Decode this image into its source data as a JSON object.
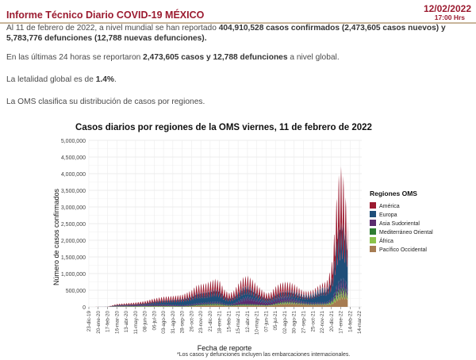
{
  "header": {
    "title": "Informe Técnico Diario COVID-19 MÉXICO",
    "date": "12/02/2022",
    "time": "17:00 Hrs"
  },
  "paragraphs": {
    "p1_a": "Al 11 de febrero de 2022, a nivel mundial se han reportado ",
    "p1_b": "404,910,528 casos confirmados (2,473,605 casos nuevos) y 5,783,776 defunciones (12,788 nuevas defunciones).",
    "p2_a": "En las últimas 24 horas se reportaron ",
    "p2_b": "2,473,605 casos y 12,788 defunciones",
    "p2_c": " a nivel global.",
    "p3_a": "La letalidad global es de ",
    "p3_b": "1.4%",
    "p3_c": ".",
    "p4": "La OMS clasifica su distribución de casos por regiones."
  },
  "chart_data": {
    "type": "area",
    "title": "Casos diarios por regiones de la OMS viernes, 11 de febrero de 2022",
    "xlabel": "Fecha de reporte",
    "ylabel": "Número de casos confirmados",
    "ylim": [
      0,
      5000000
    ],
    "y_ticks": [
      "0",
      "500,000",
      "1,000,000",
      "1,500,000",
      "2,000,000",
      "2,500,000",
      "3,000,000",
      "3,500,000",
      "4,000,000",
      "4,500,000",
      "5,000,000"
    ],
    "x_ticks": [
      "23-dic-19",
      "20-ene-20",
      "17-feb-20",
      "16-mar-20",
      "13-abr-20",
      "11-may-20",
      "08-jun-20",
      "06-jul-20",
      "03-ago-20",
      "31-ago-20",
      "28-sep-20",
      "26-oct-20",
      "23-nov-20",
      "21-dic-20",
      "18-ene-21",
      "15-feb-21",
      "15-mar-21",
      "12-abr-21",
      "10-may-21",
      "07-jun-21",
      "05-jul-21",
      "02-ago-21",
      "30-ago-21",
      "27-sep-21",
      "25-oct-21",
      "22-nov-21",
      "20-dic-21",
      "17-ene-22",
      "14-feb-22",
      "14-mar-22"
    ],
    "x_weeks": [
      0,
      4,
      8,
      12,
      16,
      20,
      24,
      28,
      32,
      36,
      40,
      44,
      48,
      52,
      56,
      60,
      64,
      68,
      72,
      76,
      80,
      84,
      88,
      92,
      96,
      100,
      104,
      108,
      112,
      116
    ],
    "grid": true,
    "legend_title": "Regiones OMS",
    "legend_position": "right",
    "series": [
      {
        "name": "América",
        "color": "#9b1b30"
      },
      {
        "name": "Europa",
        "color": "#1f4e79"
      },
      {
        "name": "Asia Sudoriental",
        "color": "#5b2c6f"
      },
      {
        "name": "Mediterráneo Oriental",
        "color": "#2e7d32"
      },
      {
        "name": "África",
        "color": "#8bc34a"
      },
      {
        "name": "Pacífico Occidental",
        "color": "#a67c52"
      }
    ],
    "total_profile_weeks": [
      0,
      8,
      12,
      16,
      20,
      24,
      28,
      32,
      36,
      40,
      44,
      46,
      48,
      50,
      52,
      54,
      56,
      58,
      60,
      62,
      64,
      66,
      68,
      70,
      72,
      74,
      76,
      78,
      80,
      82,
      84,
      86,
      88,
      90,
      92,
      94,
      96,
      98,
      100,
      102,
      104,
      105,
      106,
      107,
      108,
      109,
      110,
      111
    ],
    "total_profile_values": [
      0,
      5000,
      80000,
      100000,
      120000,
      160000,
      230000,
      280000,
      300000,
      330000,
      450000,
      580000,
      620000,
      640000,
      700000,
      760000,
      720000,
      480000,
      380000,
      430000,
      620000,
      800000,
      850000,
      750000,
      600000,
      480000,
      380000,
      400000,
      550000,
      650000,
      680000,
      680000,
      620000,
      520000,
      440000,
      430000,
      460000,
      560000,
      650000,
      700000,
      1100000,
      1800000,
      2800000,
      3500000,
      3800000,
      3600000,
      3000000,
      2600000
    ],
    "share_weeks": [
      0,
      20,
      40,
      50,
      60,
      68,
      76,
      84,
      92,
      100,
      104,
      108,
      111
    ],
    "share_america": [
      0.3,
      0.35,
      0.3,
      0.35,
      0.35,
      0.3,
      0.35,
      0.35,
      0.2,
      0.15,
      0.35,
      0.4,
      0.28
    ],
    "share_europa": [
      0.4,
      0.2,
      0.55,
      0.45,
      0.45,
      0.35,
      0.25,
      0.2,
      0.45,
      0.65,
      0.45,
      0.4,
      0.46
    ],
    "share_asia": [
      0.05,
      0.25,
      0.08,
      0.06,
      0.06,
      0.25,
      0.25,
      0.2,
      0.1,
      0.05,
      0.05,
      0.06,
      0.08
    ],
    "share_med": [
      0.08,
      0.1,
      0.04,
      0.05,
      0.05,
      0.04,
      0.04,
      0.06,
      0.05,
      0.03,
      0.03,
      0.03,
      0.03
    ],
    "share_africa": [
      0.02,
      0.05,
      0.01,
      0.02,
      0.02,
      0.01,
      0.02,
      0.04,
      0.02,
      0.01,
      0.04,
      0.02,
      0.02
    ],
    "x_max_weeks": 117
  },
  "footnote": "*Los casos y defunciones incluyen las embarcaciones internacionales."
}
